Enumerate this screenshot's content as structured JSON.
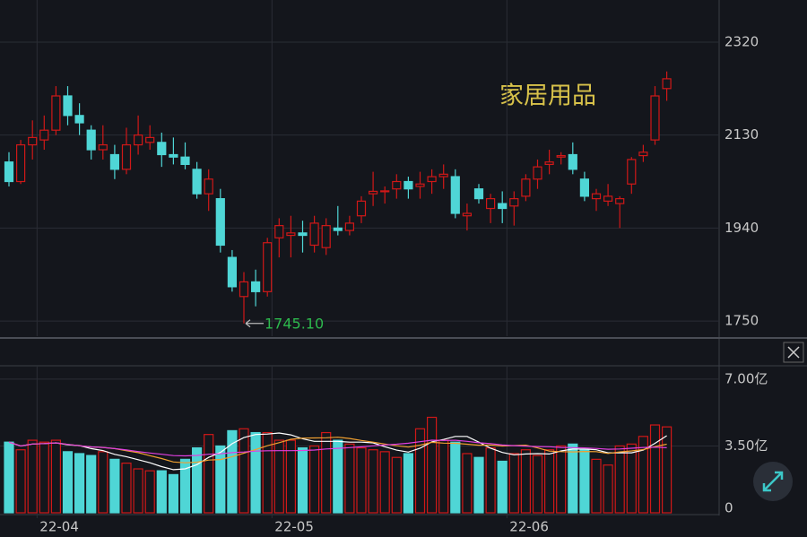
{
  "chart_data": {
    "type": "candlestick",
    "title": "家居用品",
    "categories": [
      null,
      null,
      null,
      "22-04",
      null,
      null,
      null,
      null,
      null,
      null,
      null,
      null,
      null,
      null,
      null,
      null,
      null,
      null,
      null,
      null,
      null,
      null,
      null,
      "22-05",
      null,
      null,
      null,
      null,
      null,
      null,
      null,
      null,
      null,
      null,
      null,
      null,
      null,
      null,
      null,
      null,
      null,
      null,
      null,
      "22-06",
      null,
      null,
      null,
      null,
      null,
      null,
      null,
      null,
      null,
      null,
      null,
      null,
      null
    ],
    "open": [
      2075,
      2035,
      2110,
      2120,
      2140,
      2210,
      2170,
      2140,
      2100,
      2090,
      2060,
      2110,
      2115,
      2115,
      2090,
      2085,
      2060,
      2010,
      2000,
      1880,
      1800,
      1830,
      1810,
      1920,
      1925,
      1930,
      1905,
      1900,
      1940,
      1935,
      1965,
      2010,
      2015,
      2020,
      2035,
      2025,
      2035,
      2045,
      2045,
      1965,
      2020,
      1980,
      1990,
      1985,
      2005,
      2040,
      2070,
      2085,
      2090,
      2040,
      2000,
      1995,
      1990,
      2030,
      2088,
      2120,
      2225
    ],
    "high": [
      2095,
      2120,
      2160,
      2170,
      2230,
      2230,
      2195,
      2150,
      2150,
      2110,
      2145,
      2170,
      2150,
      2135,
      2125,
      2115,
      2075,
      2060,
      2020,
      1895,
      1850,
      1855,
      1920,
      1960,
      1965,
      1955,
      1965,
      1960,
      1985,
      1965,
      2005,
      2055,
      2025,
      2050,
      2045,
      2055,
      2060,
      2070,
      2060,
      1990,
      2030,
      2010,
      2015,
      2015,
      2050,
      2080,
      2100,
      2095,
      2115,
      2055,
      2020,
      2030,
      2005,
      2085,
      2110,
      2230,
      2260
    ],
    "low": [
      2025,
      2030,
      2080,
      2100,
      2130,
      2150,
      2130,
      2080,
      2080,
      2040,
      2050,
      2090,
      2100,
      2065,
      2070,
      2060,
      2000,
      1975,
      1890,
      1810,
      1745.1,
      1780,
      1800,
      1880,
      1880,
      1890,
      1890,
      1885,
      1925,
      1925,
      1950,
      1985,
      1990,
      2000,
      2000,
      2000,
      2010,
      2020,
      1960,
      1935,
      1990,
      1950,
      1950,
      1945,
      1995,
      2020,
      2050,
      2070,
      2050,
      1995,
      1975,
      1985,
      1940,
      2010,
      2075,
      2110,
      2200
    ],
    "close": [
      2035,
      2110,
      2125,
      2140,
      2210,
      2170,
      2155,
      2100,
      2110,
      2060,
      2110,
      2130,
      2125,
      2090,
      2085,
      2070,
      2010,
      2040,
      1905,
      1820,
      1830,
      1810,
      1910,
      1945,
      1930,
      1925,
      1950,
      1945,
      1935,
      1950,
      1995,
      2015,
      2016,
      2035,
      2020,
      2030,
      2045,
      2050,
      1970,
      1970,
      2000,
      2000,
      1980,
      2000,
      2040,
      2065,
      2075,
      2088,
      2060,
      2005,
      2010,
      2005,
      2000,
      2080,
      2095,
      2210,
      2245
    ],
    "low_label": "1745.10",
    "ylim": [
      1719,
      2406
    ],
    "yticks": [
      1750,
      1940,
      2130,
      2320
    ],
    "up_color": "#d01818",
    "down_color": "#4fd6d6",
    "grid": true,
    "volume": {
      "values": [
        3.7,
        3.3,
        3.8,
        3.7,
        3.8,
        3.2,
        3.1,
        3.0,
        3.2,
        2.8,
        2.6,
        2.3,
        2.2,
        2.2,
        2.0,
        2.8,
        3.4,
        4.1,
        3.5,
        4.3,
        4.4,
        4.2,
        4.2,
        3.8,
        3.8,
        3.4,
        3.5,
        4.2,
        3.8,
        3.6,
        3.4,
        3.3,
        3.2,
        2.9,
        3.1,
        4.4,
        5.0,
        3.8,
        3.7,
        3.1,
        2.9,
        3.4,
        2.7,
        3.1,
        3.3,
        3.0,
        3.3,
        3.5,
        3.6,
        3.3,
        2.8,
        2.5,
        3.5,
        3.6,
        4.0,
        4.6,
        4.5
      ],
      "ylim": [
        0,
        7.7
      ],
      "yticks": [
        {
          "value": 0,
          "label": "0"
        },
        {
          "value": 3.5,
          "label": "3.50亿"
        },
        {
          "value": 7,
          "label": "7.00亿"
        }
      ],
      "ma_lines": [
        {
          "window": 5,
          "color": "#ffffff"
        },
        {
          "window": 10,
          "color": "#f0a030"
        },
        {
          "window": 20,
          "color": "#e040e0"
        }
      ]
    }
  }
}
